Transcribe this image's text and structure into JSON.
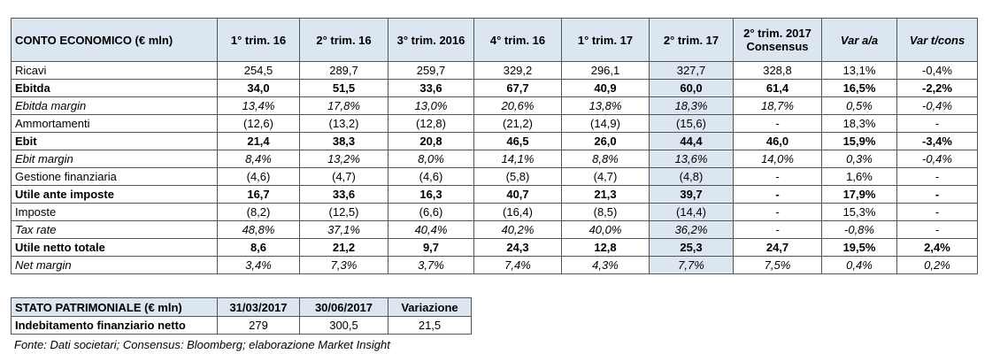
{
  "income_table": {
    "header": [
      "CONTO ECONOMICO (€ mln)",
      "1° trim. 16",
      "2° trim. 16",
      "3° trim. 2016",
      "4° trim. 16",
      "1° trim. 17",
      "2° trim. 17",
      "2° trim. 2017\nConsensus",
      "Var a/a",
      "Var t/cons"
    ],
    "rows": [
      [
        "Ricavi",
        "254,5",
        "289,7",
        "259,7",
        "329,2",
        "296,1",
        "327,7",
        "328,8",
        "13,1%",
        "-0,4%"
      ],
      [
        "Ebitda",
        "34,0",
        "51,5",
        "33,6",
        "67,7",
        "40,9",
        "60,0",
        "61,4",
        "16,5%",
        "-2,2%"
      ],
      [
        "Ebitda margin",
        "13,4%",
        "17,8%",
        "13,0%",
        "20,6%",
        "13,8%",
        "18,3%",
        "18,7%",
        "0,5%",
        "-0,4%"
      ],
      [
        "Ammortamenti",
        "(12,6)",
        "(13,2)",
        "(12,8)",
        "(21,2)",
        "(14,9)",
        "(15,6)",
        "-",
        "18,3%",
        "-"
      ],
      [
        "Ebit",
        "21,4",
        "38,3",
        "20,8",
        "46,5",
        "26,0",
        "44,4",
        "46,0",
        "15,9%",
        "-3,4%"
      ],
      [
        "Ebit margin",
        "8,4%",
        "13,2%",
        "8,0%",
        "14,1%",
        "8,8%",
        "13,6%",
        "14,0%",
        "0,3%",
        "-0,4%"
      ],
      [
        "Gestione finanziaria",
        "(4,6)",
        "(4,7)",
        "(4,6)",
        "(5,8)",
        "(4,7)",
        "(4,8)",
        "-",
        "1,6%",
        "-"
      ],
      [
        "Utile ante imposte",
        "16,7",
        "33,6",
        "16,3",
        "40,7",
        "21,3",
        "39,7",
        "-",
        "17,9%",
        "-"
      ],
      [
        "Imposte",
        "(8,2)",
        "(12,5)",
        "(6,6)",
        "(16,4)",
        "(8,5)",
        "(14,4)",
        "-",
        "15,3%",
        "-"
      ],
      [
        "Tax rate",
        "48,8%",
        "37,1%",
        "40,4%",
        "40,2%",
        "40,0%",
        "36,2%",
        "-",
        "-0,8%",
        "-"
      ],
      [
        "Utile netto totale",
        "8,6",
        "21,2",
        "9,7",
        "24,3",
        "12,8",
        "25,3",
        "24,7",
        "19,5%",
        "2,4%"
      ],
      [
        "Net margin",
        "3,4%",
        "7,3%",
        "3,7%",
        "7,4%",
        "4,3%",
        "7,7%",
        "7,5%",
        "0,4%",
        "0,2%"
      ]
    ]
  },
  "balance_table": {
    "header": [
      "STATO PATRIMONIALE (€ mln)",
      "31/03/2017",
      "30/06/2017",
      "Variazione"
    ],
    "rows": [
      [
        "Indebitamento finanziario netto",
        "279",
        "300,5",
        "21,5"
      ]
    ]
  },
  "note": "Fonte: Dati societari; Consensus: Bloomberg; elaborazione Market Insight"
}
